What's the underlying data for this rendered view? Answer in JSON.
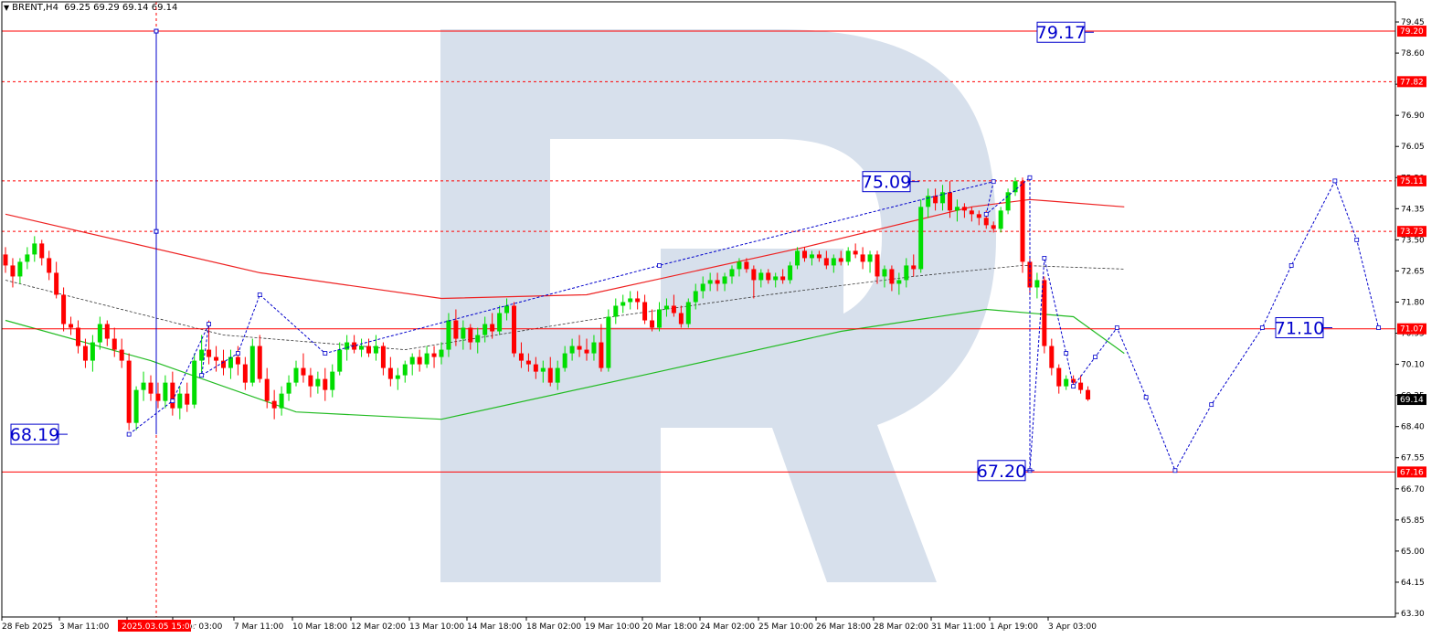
{
  "symbol_header": {
    "symbol": "BRENT,H4",
    "ohlc": "69.25 69.29 69.14 69.14"
  },
  "colors": {
    "background": "#ffffff",
    "grid_and_axes": "#000000",
    "level_lines": "#ff0000",
    "bull_candle": "#00dd00",
    "bear_candle": "#ff0000",
    "forecast_line": "#0000cc",
    "ma_slow": "#ee2222",
    "ma_fast": "#22bb22",
    "ma_mid": "#333333",
    "watermark": "#d7e0ec",
    "price_tag": "#ff0000",
    "current_price_tag": "#000000"
  },
  "watermark_logo": "R",
  "chart_data": {
    "type": "candlestick",
    "ylim": [
      63.2,
      80.0
    ],
    "y_ticks": [
      "79.45",
      "78.60",
      "77.75",
      "76.90",
      "76.05",
      "75.20",
      "74.35",
      "73.50",
      "72.65",
      "71.80",
      "70.95",
      "70.10",
      "69.25",
      "68.40",
      "67.55",
      "66.70",
      "65.85",
      "65.00",
      "64.15",
      "63.30"
    ],
    "x_ticks": [
      "28 Feb 2025",
      "3 Mar 11:00",
      "4 Mar 19:00",
      "6 Mar 03:00",
      "7 Mar 11:00",
      "10 Mar 18:00",
      "12 Mar 02:00",
      "13 Mar 10:00",
      "14 Mar 18:00",
      "18 Mar 02:00",
      "19 Mar 10:00",
      "20 Mar 18:00",
      "24 Mar 02:00",
      "25 Mar 10:00",
      "26 Mar 18:00",
      "28 Mar 02:00",
      "31 Mar 11:00",
      "1 Apr 19:00",
      "3 Apr 03:00"
    ],
    "crosshair_time_label": "2025.03.05 15:00",
    "solid_levels": [
      {
        "price": 79.2,
        "tag": "79.20"
      },
      {
        "price": 71.07,
        "tag": "71.07"
      },
      {
        "price": 67.16,
        "tag": "67.16"
      }
    ],
    "dashed_levels": [
      {
        "price": 77.82,
        "tag": "77.82"
      },
      {
        "price": 75.11,
        "tag": "75.11"
      },
      {
        "price": 73.73,
        "tag": "73.73"
      }
    ],
    "current_price": "69.14",
    "annotations": [
      {
        "text": "79.17",
        "price": 79.17
      },
      {
        "text": "75.09",
        "price": 75.09
      },
      {
        "text": "71.10",
        "price": 71.1
      },
      {
        "text": "68.19",
        "price": 68.19
      },
      {
        "text": "67.20",
        "price": 67.2
      }
    ],
    "candles": [
      [
        73.1,
        73.3,
        72.6,
        72.8
      ],
      [
        72.8,
        73.0,
        72.2,
        72.5
      ],
      [
        72.5,
        73.0,
        72.3,
        72.9
      ],
      [
        72.9,
        73.3,
        72.7,
        73.1
      ],
      [
        73.1,
        73.6,
        72.9,
        73.4
      ],
      [
        73.4,
        73.5,
        72.8,
        73.0
      ],
      [
        73.0,
        73.2,
        72.4,
        72.6
      ],
      [
        72.6,
        72.9,
        71.9,
        72.0
      ],
      [
        72.0,
        72.2,
        71.0,
        71.2
      ],
      [
        71.2,
        71.4,
        70.9,
        71.1
      ],
      [
        71.1,
        71.3,
        70.4,
        70.6
      ],
      [
        70.6,
        70.8,
        70.0,
        70.2
      ],
      [
        70.2,
        70.9,
        69.9,
        70.7
      ],
      [
        70.7,
        71.4,
        70.5,
        71.2
      ],
      [
        71.2,
        71.3,
        70.6,
        70.8
      ],
      [
        70.8,
        71.1,
        70.3,
        70.5
      ],
      [
        70.5,
        70.8,
        70.0,
        70.2
      ],
      [
        70.2,
        70.4,
        68.3,
        68.5
      ],
      [
        68.5,
        69.5,
        68.3,
        69.4
      ],
      [
        69.4,
        69.9,
        69.1,
        69.6
      ],
      [
        69.6,
        69.8,
        69.1,
        69.3
      ],
      [
        69.3,
        69.6,
        68.9,
        69.1
      ],
      [
        69.1,
        69.8,
        68.9,
        69.6
      ],
      [
        69.6,
        69.9,
        68.7,
        68.9
      ],
      [
        68.9,
        69.5,
        68.6,
        69.3
      ],
      [
        69.3,
        69.6,
        68.8,
        69.0
      ],
      [
        69.0,
        70.4,
        68.9,
        70.2
      ],
      [
        70.2,
        70.9,
        69.8,
        70.5
      ],
      [
        70.5,
        71.3,
        70.1,
        70.3
      ],
      [
        70.3,
        70.6,
        69.9,
        70.2
      ],
      [
        70.2,
        70.5,
        69.8,
        70.0
      ],
      [
        70.0,
        70.5,
        69.7,
        70.3
      ],
      [
        70.3,
        70.6,
        69.8,
        70.1
      ],
      [
        70.1,
        70.3,
        69.4,
        69.6
      ],
      [
        69.6,
        70.8,
        69.5,
        70.6
      ],
      [
        70.6,
        70.9,
        69.6,
        69.7
      ],
      [
        69.7,
        70.0,
        68.9,
        69.1
      ],
      [
        69.1,
        69.4,
        68.6,
        68.9
      ],
      [
        68.9,
        69.5,
        68.7,
        69.3
      ],
      [
        69.3,
        69.8,
        69.1,
        69.6
      ],
      [
        69.6,
        70.2,
        69.5,
        70.0
      ],
      [
        70.0,
        70.4,
        69.6,
        69.8
      ],
      [
        69.8,
        70.0,
        69.2,
        69.5
      ],
      [
        69.5,
        69.9,
        69.3,
        69.7
      ],
      [
        69.7,
        70.0,
        69.1,
        69.4
      ],
      [
        69.4,
        70.1,
        69.2,
        69.9
      ],
      [
        69.9,
        70.7,
        69.8,
        70.5
      ],
      [
        70.5,
        70.9,
        70.2,
        70.7
      ],
      [
        70.7,
        70.9,
        70.4,
        70.5
      ],
      [
        70.5,
        70.8,
        70.3,
        70.6
      ],
      [
        70.6,
        70.8,
        70.3,
        70.4
      ],
      [
        70.4,
        70.9,
        70.2,
        70.6
      ],
      [
        70.6,
        70.7,
        69.8,
        70.0
      ],
      [
        70.0,
        70.3,
        69.5,
        69.7
      ],
      [
        69.7,
        70.0,
        69.4,
        69.8
      ],
      [
        69.8,
        70.2,
        69.6,
        70.1
      ],
      [
        70.1,
        70.4,
        69.8,
        70.3
      ],
      [
        70.3,
        70.5,
        69.9,
        70.1
      ],
      [
        70.1,
        70.6,
        70.0,
        70.4
      ],
      [
        70.4,
        70.6,
        70.0,
        70.3
      ],
      [
        70.3,
        70.7,
        70.1,
        70.5
      ],
      [
        70.5,
        71.5,
        70.3,
        71.3
      ],
      [
        71.3,
        71.6,
        70.6,
        70.8
      ],
      [
        70.8,
        71.3,
        70.5,
        71.1
      ],
      [
        71.1,
        71.2,
        70.5,
        70.7
      ],
      [
        70.7,
        71.1,
        70.4,
        70.9
      ],
      [
        70.9,
        71.4,
        70.7,
        71.2
      ],
      [
        71.2,
        71.5,
        70.8,
        71.0
      ],
      [
        71.0,
        71.7,
        70.9,
        71.5
      ],
      [
        71.5,
        71.9,
        71.3,
        71.7
      ],
      [
        71.7,
        71.8,
        70.3,
        70.4
      ],
      [
        70.4,
        70.7,
        70.0,
        70.2
      ],
      [
        70.2,
        70.4,
        69.9,
        70.1
      ],
      [
        70.1,
        70.3,
        69.7,
        69.9
      ],
      [
        69.9,
        70.2,
        69.6,
        70.0
      ],
      [
        70.0,
        70.3,
        69.5,
        69.6
      ],
      [
        69.6,
        70.2,
        69.4,
        70.0
      ],
      [
        70.0,
        70.6,
        69.9,
        70.4
      ],
      [
        70.4,
        70.8,
        70.2,
        70.6
      ],
      [
        70.6,
        70.9,
        70.3,
        70.5
      ],
      [
        70.5,
        70.8,
        70.2,
        70.4
      ],
      [
        70.4,
        70.9,
        70.2,
        70.7
      ],
      [
        70.7,
        71.2,
        69.9,
        70.0
      ],
      [
        70.0,
        71.6,
        69.9,
        71.4
      ],
      [
        71.4,
        71.9,
        71.2,
        71.7
      ],
      [
        71.7,
        72.0,
        71.5,
        71.8
      ],
      [
        71.8,
        72.1,
        71.6,
        71.9
      ],
      [
        71.9,
        72.1,
        71.6,
        71.8
      ],
      [
        71.8,
        72.0,
        71.2,
        71.3
      ],
      [
        71.3,
        71.6,
        71.0,
        71.1
      ],
      [
        71.1,
        71.8,
        71.0,
        71.6
      ],
      [
        71.6,
        71.9,
        71.4,
        71.7
      ],
      [
        71.7,
        72.0,
        71.4,
        71.5
      ],
      [
        71.5,
        71.7,
        71.1,
        71.2
      ],
      [
        71.2,
        71.9,
        71.1,
        71.8
      ],
      [
        71.8,
        72.3,
        71.6,
        72.1
      ],
      [
        72.1,
        72.5,
        71.9,
        72.3
      ],
      [
        72.3,
        72.6,
        72.1,
        72.4
      ],
      [
        72.4,
        72.6,
        72.1,
        72.3
      ],
      [
        72.3,
        72.6,
        72.1,
        72.5
      ],
      [
        72.5,
        72.8,
        72.3,
        72.7
      ],
      [
        72.7,
        73.0,
        72.5,
        72.9
      ],
      [
        72.9,
        73.0,
        72.6,
        72.7
      ],
      [
        72.7,
        72.8,
        71.9,
        72.4
      ],
      [
        72.4,
        72.7,
        72.2,
        72.6
      ],
      [
        72.6,
        72.7,
        72.3,
        72.4
      ],
      [
        72.4,
        72.6,
        72.2,
        72.5
      ],
      [
        72.5,
        72.7,
        72.3,
        72.4
      ],
      [
        72.4,
        72.9,
        72.3,
        72.8
      ],
      [
        72.8,
        73.3,
        72.7,
        73.2
      ],
      [
        73.2,
        73.3,
        72.9,
        73.0
      ],
      [
        73.0,
        73.2,
        72.8,
        73.1
      ],
      [
        73.1,
        73.2,
        72.9,
        73.0
      ],
      [
        73.0,
        73.2,
        72.7,
        72.8
      ],
      [
        72.8,
        73.1,
        72.6,
        73.0
      ],
      [
        73.0,
        73.2,
        72.8,
        72.9
      ],
      [
        72.9,
        73.3,
        72.8,
        73.2
      ],
      [
        73.2,
        73.4,
        73.0,
        73.1
      ],
      [
        73.1,
        73.3,
        72.7,
        72.9
      ],
      [
        72.9,
        73.2,
        72.6,
        73.1
      ],
      [
        73.1,
        73.2,
        72.3,
        72.5
      ],
      [
        72.5,
        72.8,
        72.2,
        72.7
      ],
      [
        72.7,
        72.8,
        72.1,
        72.3
      ],
      [
        72.3,
        72.6,
        72.0,
        72.4
      ],
      [
        72.4,
        73.0,
        72.2,
        72.8
      ],
      [
        72.8,
        73.1,
        72.5,
        72.7
      ],
      [
        72.7,
        74.6,
        72.6,
        74.4
      ],
      [
        74.4,
        74.9,
        74.1,
        74.7
      ],
      [
        74.7,
        74.9,
        74.3,
        74.5
      ],
      [
        74.5,
        75.0,
        74.3,
        74.8
      ],
      [
        74.8,
        75.1,
        74.1,
        74.3
      ],
      [
        74.3,
        74.6,
        74.0,
        74.4
      ],
      [
        74.4,
        74.5,
        74.1,
        74.3
      ],
      [
        74.3,
        74.4,
        74.0,
        74.2
      ],
      [
        74.2,
        74.3,
        73.9,
        74.1
      ],
      [
        74.1,
        74.3,
        73.8,
        73.9
      ],
      [
        73.9,
        74.0,
        73.7,
        73.8
      ],
      [
        73.8,
        74.4,
        73.7,
        74.3
      ],
      [
        74.3,
        74.9,
        74.2,
        74.8
      ],
      [
        74.8,
        75.2,
        74.7,
        75.1
      ],
      [
        75.1,
        75.2,
        72.6,
        72.9
      ],
      [
        72.9,
        73.0,
        72.0,
        72.2
      ],
      [
        72.2,
        72.6,
        71.9,
        72.4
      ],
      [
        72.4,
        72.5,
        70.4,
        70.6
      ],
      [
        70.6,
        70.8,
        69.8,
        70.0
      ],
      [
        70.0,
        70.1,
        69.3,
        69.5
      ],
      [
        69.5,
        69.8,
        69.4,
        69.7
      ],
      [
        69.7,
        69.8,
        69.5,
        69.6
      ],
      [
        69.6,
        69.8,
        69.3,
        69.4
      ],
      [
        69.4,
        69.5,
        69.1,
        69.14
      ]
    ],
    "forecast_path": [
      {
        "candle": 17,
        "price": 68.19
      },
      {
        "candle": 23,
        "price": 69.1
      },
      {
        "candle": 28,
        "price": 71.2
      },
      {
        "candle": 27,
        "price": 69.8
      },
      {
        "candle": 32,
        "price": 70.4
      },
      {
        "candle": 35,
        "price": 72.0
      },
      {
        "candle": 44,
        "price": 70.4
      },
      {
        "candle": 90,
        "price": 72.8
      },
      {
        "candle": 136,
        "price": 75.09
      },
      {
        "candle": 135,
        "price": 74.2
      },
      {
        "candle": 141,
        "price": 75.2
      },
      {
        "candle": 141,
        "price": 67.2
      },
      {
        "candle": 143,
        "price": 73.0
      },
      {
        "candle": 146,
        "price": 70.4
      },
      {
        "candle": 147,
        "price": 69.5
      },
      {
        "candle": 150,
        "price": 70.3
      },
      {
        "candle": 153,
        "price": 71.1
      },
      {
        "candle": 157,
        "price": 69.2
      },
      {
        "candle": 161,
        "price": 67.2
      },
      {
        "candle": 166,
        "price": 69.0
      },
      {
        "candle": 173,
        "price": 71.1
      },
      {
        "candle": 177,
        "price": 72.8
      },
      {
        "candle": 183,
        "price": 75.11
      },
      {
        "candle": 186,
        "price": 73.5
      },
      {
        "candle": 189,
        "price": 71.1
      }
    ],
    "moving_averages": {
      "slow_red": [
        [
          0,
          74.2
        ],
        [
          35,
          72.6
        ],
        [
          60,
          71.9
        ],
        [
          80,
          72.0
        ],
        [
          110,
          73.3
        ],
        [
          133,
          74.4
        ],
        [
          141,
          74.6
        ],
        [
          154,
          74.4
        ]
      ],
      "mid_dashed": [
        [
          0,
          72.4
        ],
        [
          30,
          70.9
        ],
        [
          55,
          70.5
        ],
        [
          80,
          71.3
        ],
        [
          105,
          72.0
        ],
        [
          125,
          72.5
        ],
        [
          140,
          72.8
        ],
        [
          154,
          72.7
        ]
      ],
      "fast_green": [
        [
          0,
          71.3
        ],
        [
          20,
          70.2
        ],
        [
          40,
          68.8
        ],
        [
          60,
          68.6
        ],
        [
          90,
          69.9
        ],
        [
          115,
          71.0
        ],
        [
          135,
          71.6
        ],
        [
          147,
          71.4
        ],
        [
          154,
          70.4
        ]
      ]
    }
  }
}
